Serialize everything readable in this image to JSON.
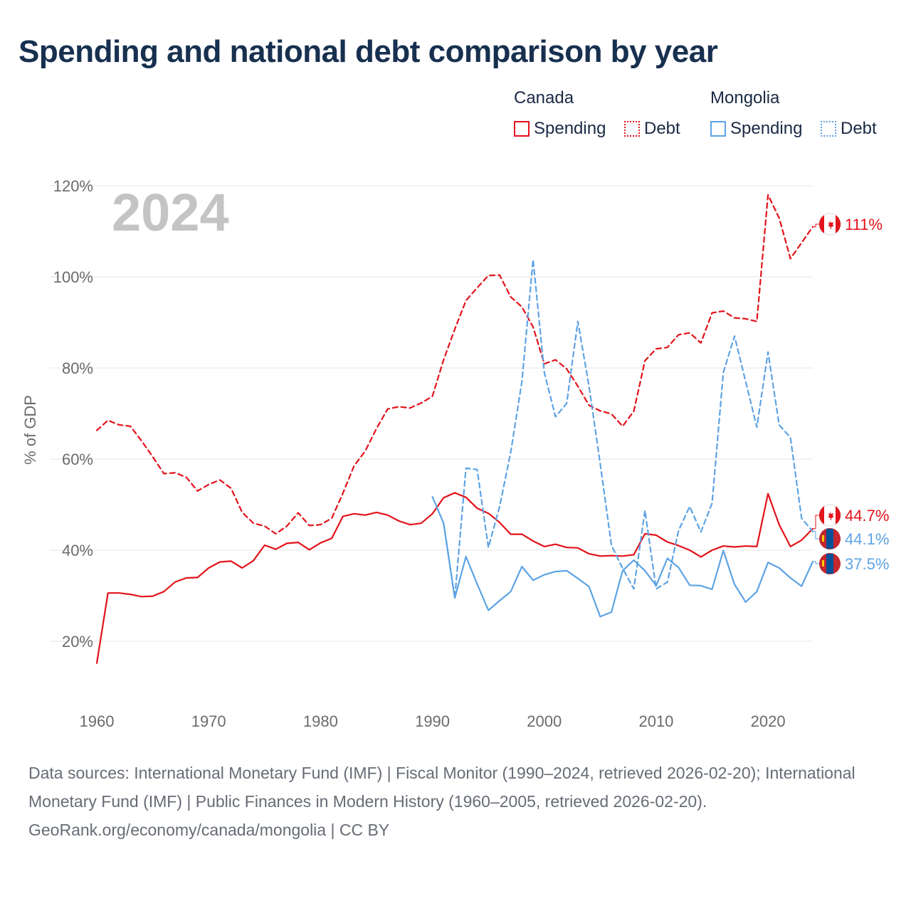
{
  "title": "Spending and national debt comparison by year",
  "legend": {
    "canada": {
      "group": "Canada",
      "spending": "Spending",
      "debt": "Debt"
    },
    "mongolia": {
      "group": "Mongolia",
      "spending": "Spending",
      "debt": "Debt"
    }
  },
  "colors": {
    "canada": "#e3121b",
    "mongolia": "#5da3e4",
    "grid": "#e6e6e6",
    "year_watermark": "#c4c4c4"
  },
  "footer": {
    "sources": "Data sources: International Monetary Fund (IMF) | Fiscal Monitor (1990–2024, retrieved 2026-02-20); International Monetary Fund (IMF) | Public Finances in Modern History (1960–2005, retrieved 2026-02-20).",
    "credit": "GeoRank.org/economy/canada/mongolia | CC BY"
  },
  "chart_data": {
    "type": "line",
    "current_year_label": "2024",
    "ylabel": "% of GDP",
    "xlim": [
      1960,
      2024
    ],
    "ylim": [
      10,
      122
    ],
    "x_ticks": [
      1960,
      1970,
      1980,
      1990,
      2000,
      2010,
      2020
    ],
    "y_ticks": [
      20,
      40,
      60,
      80,
      100,
      120
    ],
    "y_tick_labels": [
      "20%",
      "40%",
      "60%",
      "80%",
      "100%",
      "120%"
    ],
    "end_labels": [
      {
        "series": "canada_debt",
        "text": "111%"
      },
      {
        "series": "canada_spending",
        "text": "44.7%"
      },
      {
        "series": "mongolia_debt",
        "text": "44.1%"
      },
      {
        "series": "mongolia_spending",
        "text": "37.5%"
      }
    ],
    "series": [
      {
        "id": "canada_debt",
        "name": "Canada Debt",
        "country": "canada",
        "style": "dashed",
        "x_start": 1960,
        "values": [
          66.3,
          68.5,
          67.5,
          67.2,
          64.0,
          60.5,
          56.8,
          57.0,
          56.0,
          53.0,
          54.4,
          55.4,
          53.6,
          48.3,
          45.9,
          45.3,
          43.6,
          45.3,
          48.2,
          45.4,
          45.6,
          47.0,
          52.5,
          58.5,
          61.8,
          66.7,
          71.0,
          71.5,
          71.2,
          72.3,
          73.8,
          81.8,
          88.5,
          94.8,
          97.6,
          100.3,
          100.4,
          95.6,
          93.4,
          89.0,
          80.9,
          81.8,
          79.8,
          76.0,
          71.8,
          70.6,
          69.9,
          67.2,
          70.5,
          81.6,
          84.2,
          84.5,
          87.3,
          87.7,
          85.5,
          92.1,
          92.5,
          91.0,
          90.8,
          90.2,
          118.0,
          112.9,
          104.0,
          107.5,
          111.0
        ]
      },
      {
        "id": "canada_spending",
        "name": "Canada Spending",
        "country": "canada",
        "style": "solid",
        "x_start": 1960,
        "values": [
          15.2,
          30.6,
          30.6,
          30.3,
          29.8,
          29.9,
          30.9,
          33.0,
          33.9,
          34.0,
          36.1,
          37.4,
          37.6,
          36.1,
          37.7,
          41.1,
          40.2,
          41.5,
          41.7,
          40.1,
          41.6,
          42.6,
          47.4,
          48.0,
          47.7,
          48.3,
          47.7,
          46.4,
          45.6,
          45.9,
          48.0,
          51.5,
          52.6,
          51.6,
          49.2,
          48.1,
          46.1,
          43.5,
          43.5,
          42.0,
          40.8,
          41.3,
          40.6,
          40.5,
          39.2,
          38.7,
          38.8,
          38.7,
          39.0,
          43.6,
          43.3,
          41.8,
          41.0,
          40.0,
          38.5,
          40.0,
          40.9,
          40.7,
          40.9,
          40.8,
          52.4,
          45.6,
          40.8,
          42.2,
          44.7
        ]
      },
      {
        "id": "mongolia_debt",
        "name": "Mongolia Debt",
        "country": "mongolia",
        "style": "dashed",
        "x_start": 1991,
        "values": [
          45.9,
          29.5,
          58.0,
          57.7,
          40.6,
          49.5,
          61.5,
          77.0,
          103.8,
          79.0,
          69.3,
          72.2,
          90.2,
          76.0,
          59.0,
          41.1,
          36.0,
          31.5,
          48.7,
          31.5,
          33.0,
          44.3,
          49.6,
          44.0,
          50.3,
          79.0,
          87.0,
          77.0,
          67.0,
          83.5,
          67.5,
          64.7,
          47.0,
          44.1
        ]
      },
      {
        "id": "mongolia_spending",
        "name": "Mongolia Spending",
        "country": "mongolia",
        "style": "solid",
        "x_start": 1990,
        "values": [
          51.7,
          45.9,
          29.5,
          38.6,
          32.6,
          26.8,
          28.9,
          30.9,
          36.4,
          33.4,
          34.6,
          35.3,
          35.5,
          33.8,
          32.0,
          25.4,
          26.4,
          35.5,
          37.8,
          35.5,
          32.2,
          38.2,
          36.2,
          32.3,
          32.2,
          31.4,
          39.9,
          32.5,
          28.6,
          30.9,
          37.3,
          36.1,
          33.9,
          32.1,
          37.5
        ]
      }
    ]
  }
}
